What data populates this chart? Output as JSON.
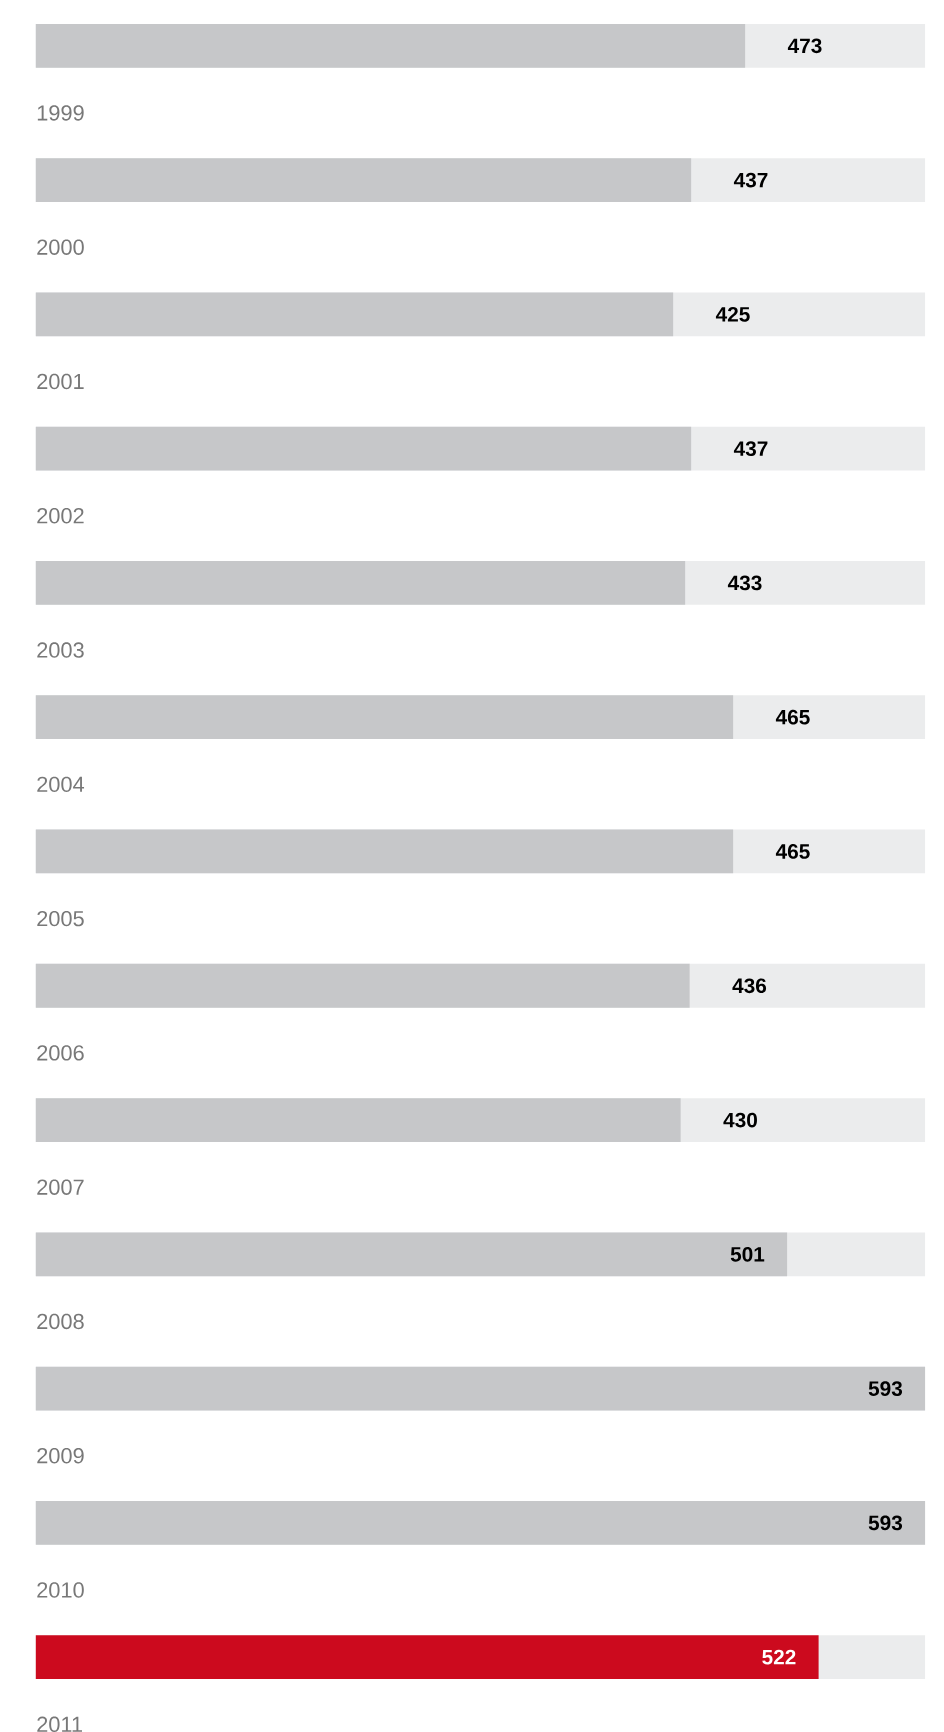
{
  "chart_data": {
    "type": "bar",
    "orientation": "horizontal",
    "categories": [
      "1999",
      "2000",
      "2001",
      "2002",
      "2003",
      "2004",
      "2005",
      "2006",
      "2007",
      "2008",
      "2009",
      "2010",
      "2011"
    ],
    "values": [
      473,
      437,
      425,
      437,
      433,
      465,
      465,
      436,
      430,
      501,
      593,
      593,
      522
    ],
    "colors": [
      "#c6c7c9",
      "#c6c7c9",
      "#c6c7c9",
      "#c6c7c9",
      "#c6c7c9",
      "#c6c7c9",
      "#c6c7c9",
      "#c6c7c9",
      "#c6c7c9",
      "#c6c7c9",
      "#c6c7c9",
      "#c6c7c9",
      "#cc0a1e"
    ],
    "xlim": [
      0,
      593
    ],
    "data_labels": true
  }
}
